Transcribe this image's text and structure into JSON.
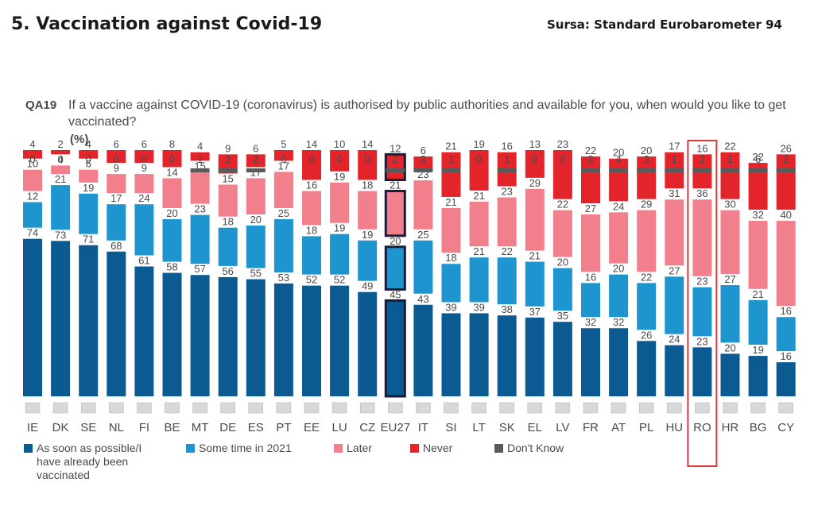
{
  "header": {
    "title": "5. Vaccination against Covid-19",
    "source": "Sursa: Standard Eurobarometer 94"
  },
  "question": {
    "code": "QA19",
    "text": "If a vaccine against COVID-19 (coronavirus) is authorised by public authorities and available for you, when would you like to get vaccinated?",
    "unit": "(%)"
  },
  "colors": {
    "asap": "#0b5a92",
    "sometime": "#1f95d0",
    "later": "#f2808c",
    "never": "#e3242b",
    "dontknow": "#5a5a5a"
  },
  "highlight": {
    "country": "RO",
    "border_color": "#d9383a"
  },
  "chart_data": {
    "type": "bar",
    "stacked": true,
    "normalized": true,
    "categories": [
      "IE",
      "DK",
      "SE",
      "NL",
      "FI",
      "BE",
      "MT",
      "DE",
      "ES",
      "PT",
      "EE",
      "LU",
      "CZ",
      "EU27",
      "IT",
      "SI",
      "LT",
      "SK",
      "EL",
      "LV",
      "FR",
      "AT",
      "PL",
      "HU",
      "RO",
      "HR",
      "BG",
      "CY"
    ],
    "series": [
      {
        "name": "As soon as possible/I have already been vaccinated",
        "color": "#0b5a92",
        "values": [
          74,
          73,
          71,
          68,
          61,
          58,
          57,
          56,
          55,
          53,
          52,
          52,
          49,
          45,
          43,
          39,
          39,
          38,
          37,
          35,
          32,
          32,
          26,
          24,
          23,
          20,
          19,
          16
        ]
      },
      {
        "name": "Some time in 2021",
        "color": "#1f95d0",
        "values": [
          12,
          21,
          19,
          17,
          24,
          20,
          23,
          18,
          20,
          25,
          18,
          19,
          19,
          20,
          25,
          18,
          21,
          22,
          21,
          20,
          16,
          20,
          22,
          27,
          23,
          27,
          21,
          16
        ]
      },
      {
        "name": "Later",
        "color": "#f2808c",
        "values": [
          10,
          4,
          6,
          9,
          9,
          14,
          15,
          15,
          17,
          17,
          16,
          19,
          18,
          21,
          23,
          21,
          21,
          23,
          29,
          22,
          27,
          24,
          29,
          31,
          36,
          30,
          32,
          40
        ]
      },
      {
        "name": "Never",
        "color": "#e3242b",
        "values": [
          4,
          2,
          4,
          6,
          6,
          8,
          4,
          9,
          6,
          5,
          14,
          10,
          14,
          12,
          6,
          21,
          19,
          16,
          13,
          23,
          22,
          20,
          20,
          17,
          16,
          22,
          22,
          26
        ]
      },
      {
        "name": "Don't Know",
        "color": "#5a5a5a",
        "values": [
          0,
          0,
          0,
          0,
          0,
          0,
          1,
          2,
          2,
          0,
          0,
          0,
          0,
          2,
          3,
          1,
          0,
          1,
          0,
          0,
          3,
          4,
          3,
          1,
          2,
          1,
          6,
          2
        ]
      }
    ],
    "highlighted_categories": [
      "EU27"
    ],
    "legend_position": "bottom",
    "grid": false
  }
}
